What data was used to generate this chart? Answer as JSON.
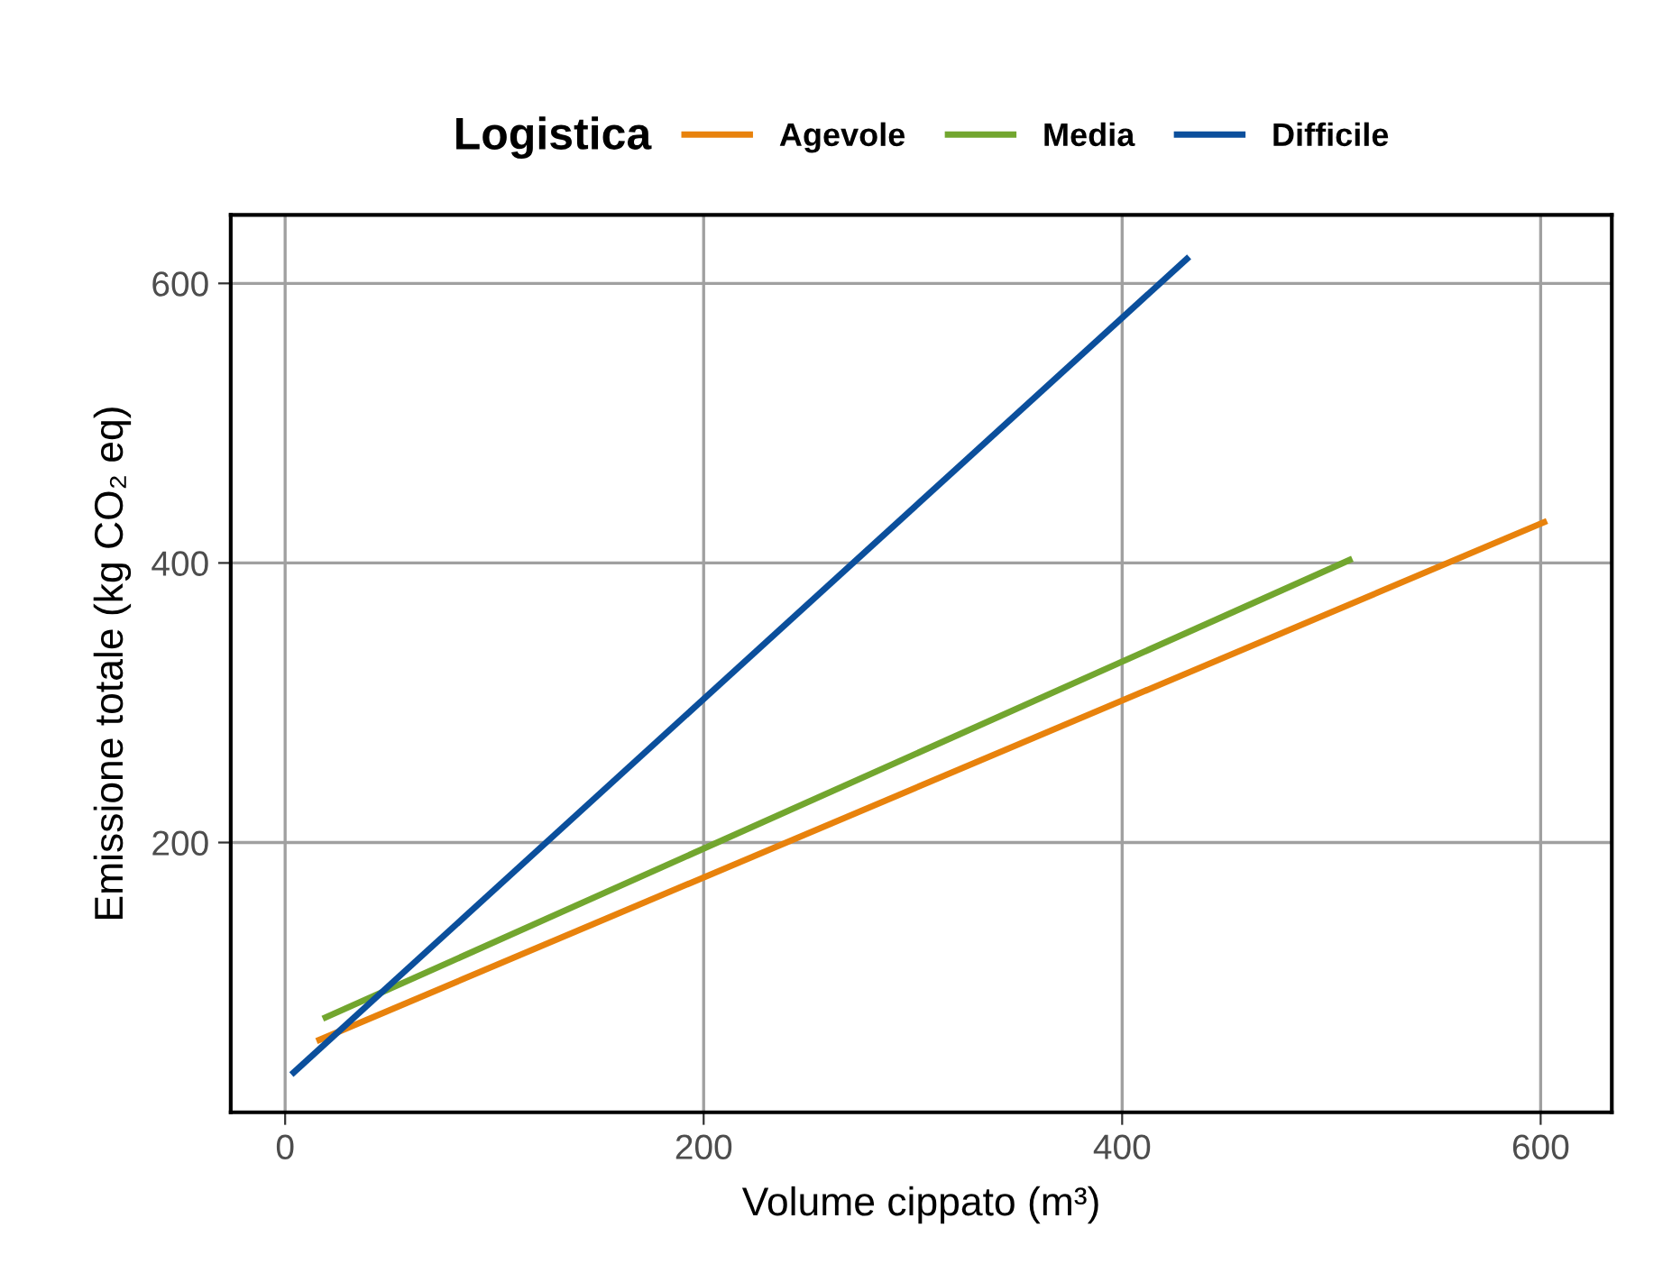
{
  "chart_data": {
    "type": "line",
    "xlabel": "Volume cippato (m³)",
    "ylabel": "Emissione totale (kg CO₂ eq)",
    "legend_title": "Logistica",
    "legend": "top",
    "series": [
      {
        "name": "Agevole",
        "color": "#e8820c",
        "x": [
          15,
          603
        ],
        "values": [
          58,
          430
        ]
      },
      {
        "name": "Media",
        "color": "#72a62f",
        "x": [
          18,
          510
        ],
        "values": [
          74,
          403
        ]
      },
      {
        "name": "Difficile",
        "color": "#0b4f9c",
        "x": [
          3,
          432
        ],
        "values": [
          34,
          619
        ]
      }
    ],
    "xlim": [
      -26,
      634
    ],
    "ylim": [
      7,
      649
    ],
    "xticks": [
      0,
      200,
      400,
      600
    ],
    "yticks": [
      200,
      400,
      600
    ],
    "grid": true,
    "line_style": "solid",
    "marker": "none"
  }
}
